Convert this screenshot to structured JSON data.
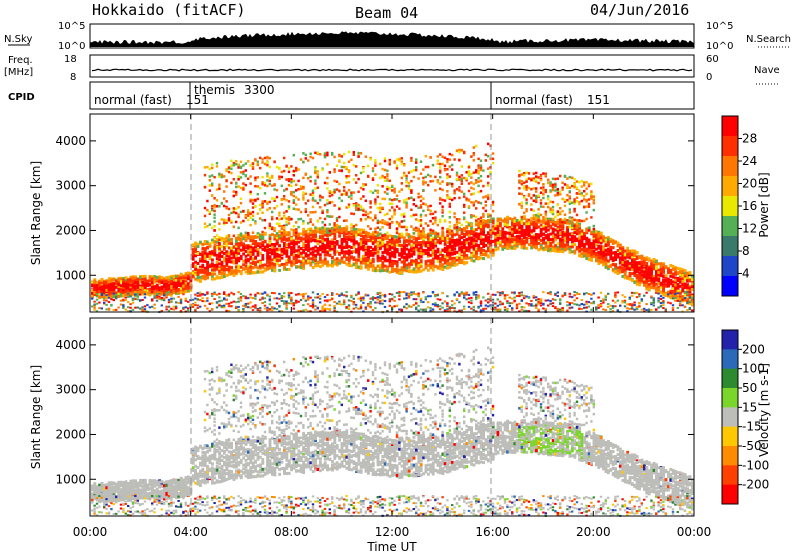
{
  "header": {
    "site": "Hokkaido (fitACF)",
    "beam": "Beam 04",
    "date": "04/Jun/2016"
  },
  "top_panels": {
    "nsky_label": "N.Sky",
    "nsky_ticks": [
      "10^5",
      "10^0"
    ],
    "nsearch_label": "N.Search",
    "nsearch_ticks": [
      "10^5",
      "10^0"
    ],
    "freq_label": "Freq.",
    "freq_unit": "[MHz]",
    "freq_ticks": [
      "18",
      "8"
    ],
    "nave_label": "Nave",
    "nave_ticks": [
      "60",
      "0"
    ],
    "cpid_label": "CPID",
    "cpid_segments": [
      {
        "name": "normal (fast)",
        "id": "151",
        "start_hour": 0,
        "end_hour": 4
      },
      {
        "name": "themis",
        "id": "3300",
        "start_hour": 4,
        "end_hour": 16
      },
      {
        "name": "normal (fast)",
        "id": "151",
        "start_hour": 16,
        "end_hour": 24
      }
    ]
  },
  "colors": {
    "power": [
      "#0000ff",
      "#1f45c8",
      "#3a7a6a",
      "#55b055",
      "#e8e800",
      "#ffaa00",
      "#ff7700",
      "#ff3000",
      "#ff0000"
    ],
    "velocity": [
      "#2222aa",
      "#2a6ab8",
      "#2e8a2e",
      "#7ad62a",
      "#bdbdb9",
      "#ffc800",
      "#ff8c00",
      "#ff4000",
      "#ff0000"
    ]
  },
  "chart_data": [
    {
      "type": "heatmap",
      "ylabel": "Slant Range [km]",
      "yticks": [
        "1000",
        "2000",
        "3000",
        "4000"
      ],
      "ylim": [
        180,
        4600
      ],
      "xlim": [
        0,
        24
      ],
      "colorbar_label": "Power [dB]",
      "colorbar_ticks": [
        "4",
        "8",
        "12",
        "16",
        "20",
        "24",
        "28"
      ],
      "colorbar_range": [
        0,
        30
      ],
      "bands": [
        {
          "x": [
            0,
            1,
            2,
            3,
            4
          ],
          "y": [
            720,
            760,
            820,
            780,
            900
          ],
          "width": 260
        },
        {
          "x": [
            4,
            6,
            8,
            10,
            12,
            14,
            16
          ],
          "y": [
            1300,
            1500,
            1600,
            1700,
            1500,
            1600,
            1900
          ],
          "width": 550
        },
        {
          "x": [
            16,
            17,
            18,
            19,
            20,
            21,
            22,
            23,
            24
          ],
          "y": [
            1950,
            2000,
            1950,
            1900,
            1700,
            1400,
            1100,
            900,
            700
          ],
          "width": 450
        }
      ]
    },
    {
      "type": "heatmap",
      "ylabel": "Slant Range [km]",
      "yticks": [
        "1000",
        "2000",
        "3000",
        "4000"
      ],
      "ylim": [
        180,
        4600
      ],
      "xlim": [
        0,
        24
      ],
      "xticks": [
        "00:00",
        "04:00",
        "08:00",
        "12:00",
        "16:00",
        "20:00",
        "00:00"
      ],
      "xlabel": "Time UT",
      "colorbar_label": "Velocity [m s-1]",
      "colorbar_ticks": [
        "200",
        "100",
        "50",
        "15",
        "-15",
        "-50",
        "-100",
        "-200"
      ],
      "colorbar_range": [
        -250,
        250
      ]
    }
  ]
}
